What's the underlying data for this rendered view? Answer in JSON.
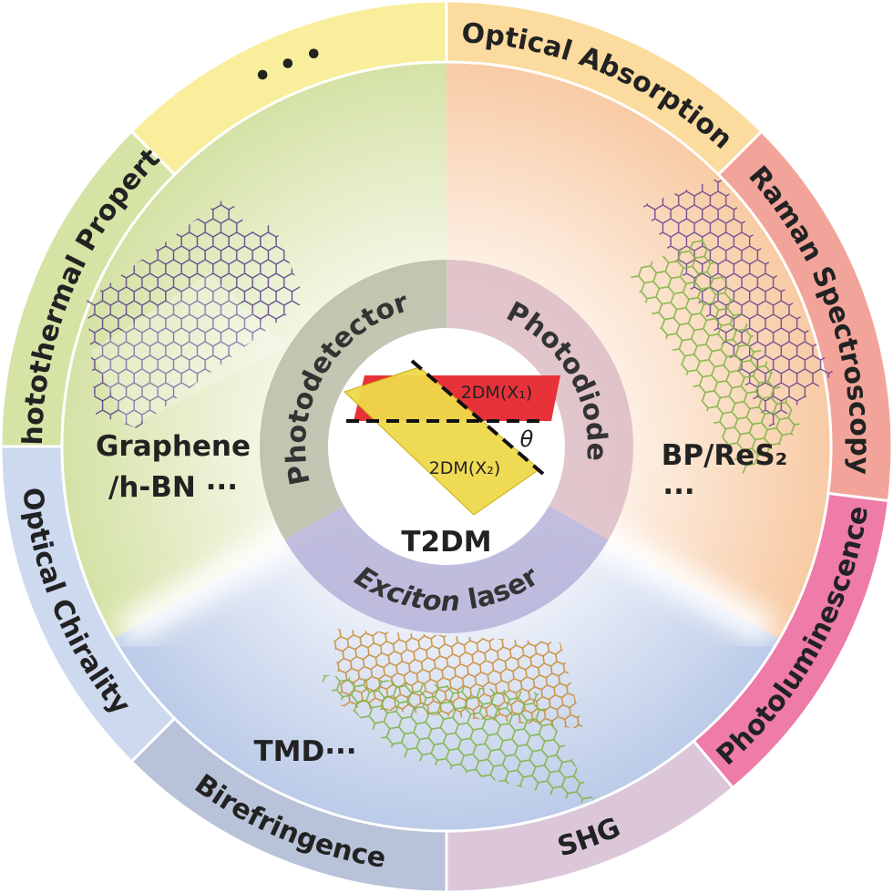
{
  "outer_ring": [
    "• • •",
    "Optical Absorption",
    "Raman Spectroscopy",
    "Photoluminescence",
    "SHG",
    "Birefringence",
    "Optical Chirality",
    "Photothermal Property"
  ],
  "inner_ring": [
    "Photodetector",
    "Photodiode"
  ],
  "exciton_laser": [
    "Exciton",
    "laser"
  ],
  "materials": {
    "left": [
      "Graphene",
      "/h-BN ···"
    ],
    "right": [
      "BP/ReS₂",
      "···"
    ],
    "bottom": [
      "TMD···"
    ]
  },
  "center": {
    "layer_1": "2DM(X₁)",
    "layer_2": "2DM(X₂)",
    "angle": "θ",
    "title": "T2DM"
  }
}
